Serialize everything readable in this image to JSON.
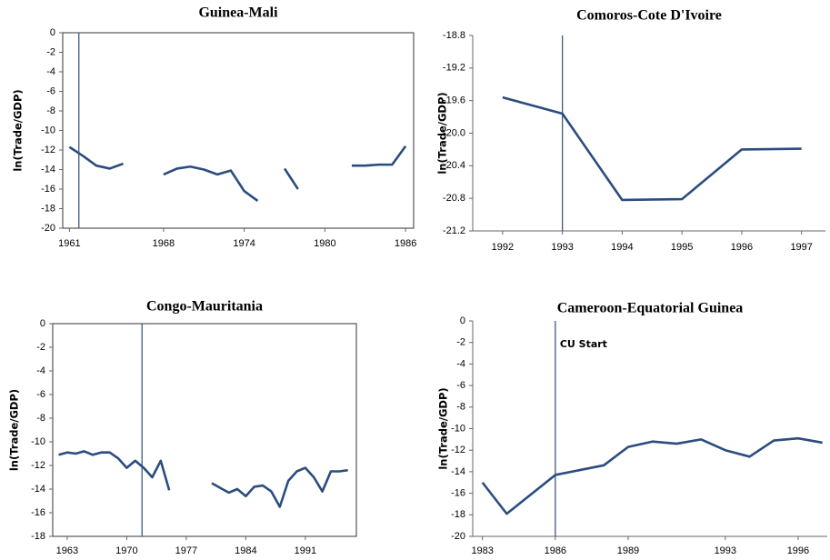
{
  "chart_data": [
    {
      "type": "line",
      "title": "Guinea-Mali",
      "y_label": "ln(Trade/GDP)",
      "frame": true,
      "color": "#2b4c7e",
      "x": [
        1961,
        1962,
        1963,
        1964,
        1965,
        1966,
        1967,
        1968,
        1969,
        1970,
        1971,
        1972,
        1973,
        1974,
        1975,
        1976,
        1977,
        1978,
        1979,
        1980,
        1981,
        1982,
        1983,
        1984,
        1985,
        1986
      ],
      "values": [
        -11.7,
        -12.6,
        -13.6,
        -13.9,
        -13.4,
        null,
        null,
        -14.5,
        -13.9,
        -13.7,
        -14.0,
        -14.5,
        -14.1,
        -16.2,
        -17.2,
        null,
        -13.9,
        -16.0,
        null,
        null,
        null,
        -13.6,
        -13.6,
        -13.5,
        -13.5,
        -11.6
      ],
      "vline": 1961.7,
      "xlim": [
        1960.5,
        1986.6
      ],
      "xticks": [
        1961,
        1968,
        1974,
        1980,
        1986
      ],
      "ylim": [
        -20,
        0
      ],
      "yticks": [
        0,
        -2,
        -4,
        -6,
        -8,
        -10,
        -12,
        -14,
        -16,
        -18,
        -20
      ]
    },
    {
      "type": "line",
      "title": "Comoros-Cote D'Ivoire",
      "y_label": "ln(Trade/GDP)",
      "frame": false,
      "color": "#2b4c7e",
      "x": [
        1992,
        1993,
        1994,
        1995,
        1996,
        1997
      ],
      "values": [
        -19.56,
        -19.76,
        -20.82,
        -20.81,
        -20.2,
        -20.19
      ],
      "vline": 1993,
      "xlim": [
        1991.5,
        1997.4
      ],
      "xticks": [
        1992,
        1993,
        1994,
        1995,
        1996,
        1997
      ],
      "ylim": [
        -21.2,
        -18.8
      ],
      "yticks": [
        -18.8,
        -19.2,
        -19.6,
        {
          "value": -20,
          "label": "-20.0"
        },
        -20.4,
        -20.8,
        -21.2
      ]
    },
    {
      "type": "line",
      "title": "Congo-Mauritania",
      "y_label": "ln(Trade/GDP)",
      "frame": true,
      "color": "#2b4c7e",
      "x": [
        1962,
        1963,
        1964,
        1965,
        1966,
        1967,
        1968,
        1969,
        1970,
        1971,
        1972,
        1973,
        1974,
        1975,
        1976,
        1977,
        1978,
        1979,
        1980,
        1981,
        1982,
        1983,
        1984,
        1985,
        1986,
        1987,
        1988,
        1989,
        1990,
        1991,
        1992,
        1993,
        1994,
        1995,
        1996
      ],
      "values": [
        -11.1,
        -10.9,
        -11.0,
        -10.8,
        -11.1,
        -10.9,
        -10.9,
        -11.4,
        -12.2,
        -11.6,
        -12.2,
        -13.0,
        -11.6,
        -14.1,
        null,
        null,
        null,
        null,
        -13.5,
        -13.9,
        -14.3,
        -14.0,
        -14.6,
        -13.8,
        -13.7,
        -14.2,
        -15.5,
        -13.3,
        -12.5,
        -12.2,
        -13.0,
        -14.2,
        -12.5,
        -12.5,
        -12.4
      ],
      "vline": 1971.8,
      "xlim": [
        1961.3,
        1997
      ],
      "xticks": [
        1963,
        1970,
        1977,
        1984,
        1991
      ],
      "ylim": [
        -18,
        0
      ],
      "yticks": [
        0,
        -2,
        -4,
        -6,
        -8,
        -10,
        -12,
        -14,
        -16,
        -18
      ]
    },
    {
      "type": "line",
      "title": "Cameroon-Equatorial Guinea",
      "y_label": "ln(Trade/GDP)",
      "frame": false,
      "color": "#2b4c7e",
      "x": [
        1983,
        1984,
        1986,
        1988,
        1989,
        1990,
        1991,
        1992,
        1993,
        1994,
        1995,
        1996,
        1997
      ],
      "values": [
        -15.0,
        -17.9,
        -14.3,
        -13.4,
        -11.7,
        -11.2,
        -11.4,
        -11.0,
        -12.0,
        -12.6,
        -11.1,
        -10.9,
        -11.3
      ],
      "vline": 1986,
      "vline_label": "CU Start",
      "xlim": [
        1982.6,
        1997.2
      ],
      "xticks": [
        1983,
        1986,
        1989,
        1993,
        1996
      ],
      "ylim": [
        -20,
        0
      ],
      "yticks": [
        0,
        -2,
        -4,
        -6,
        -8,
        -10,
        -12,
        -14,
        -16,
        -18,
        -20
      ]
    }
  ]
}
